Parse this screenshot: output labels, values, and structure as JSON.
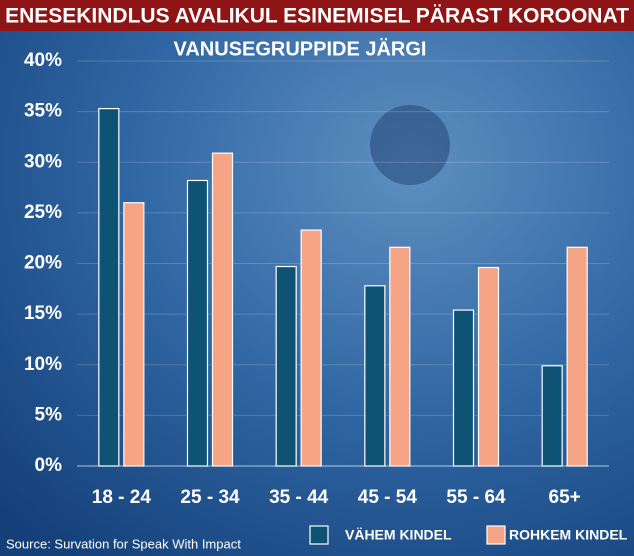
{
  "chart_data": {
    "type": "bar",
    "title": "ENESEKINDLUS AVALIKUL ESINEMISEL PÄRAST KOROONAT",
    "subtitle": "VANUSEGRUPPIDE JÄRGI",
    "categories": [
      "18 - 24",
      "25 - 34",
      "35 - 44",
      "45 - 54",
      "55 - 64",
      "65+"
    ],
    "series": [
      {
        "name": "VÄHEM KINDEL",
        "color": "#0e5274",
        "values": [
          35.3,
          28.2,
          19.7,
          17.8,
          15.4,
          9.9
        ]
      },
      {
        "name": "ROHKEM KINDEL",
        "color": "#f5a586",
        "values": [
          26.0,
          30.9,
          23.3,
          21.6,
          19.6,
          21.6
        ]
      }
    ],
    "ylim": [
      0,
      40
    ],
    "yticks": [
      {
        "value": 0,
        "label": "0%"
      },
      {
        "value": 5,
        "label": "5%"
      },
      {
        "value": 10,
        "label": "10%"
      },
      {
        "value": 15,
        "label": "15%"
      },
      {
        "value": 20,
        "label": "20%"
      },
      {
        "value": 25,
        "label": "25%"
      },
      {
        "value": 30,
        "label": "30%"
      },
      {
        "value": 35,
        "label": "35%"
      },
      {
        "value": 40,
        "label": "40%"
      }
    ],
    "grid": true,
    "source": "Source: Survation for Speak With Impact"
  }
}
